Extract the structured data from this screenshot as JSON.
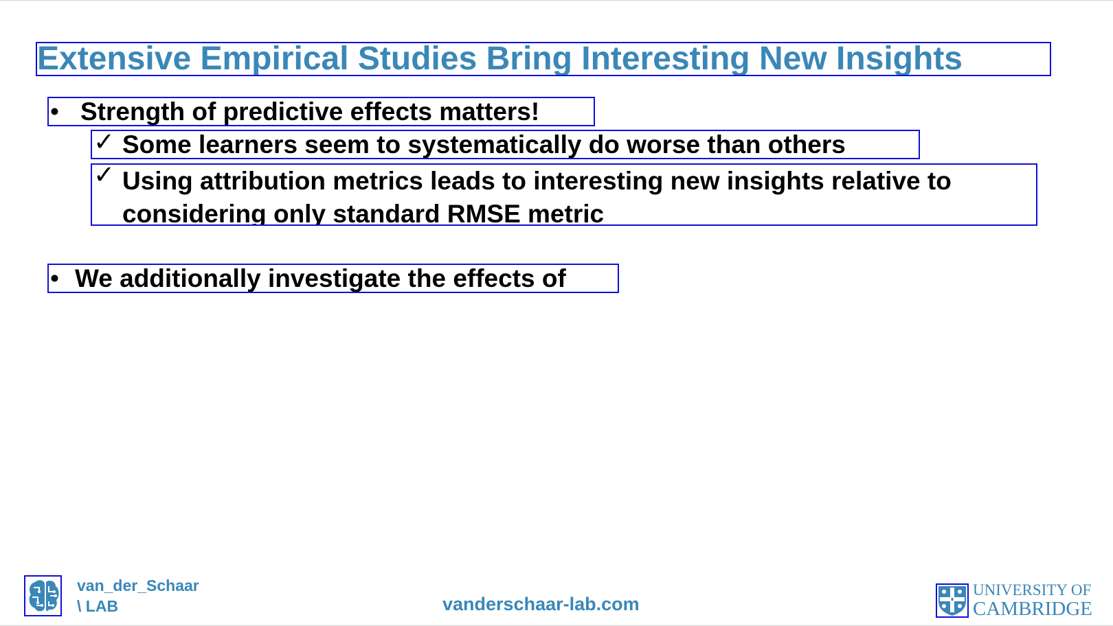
{
  "slide": {
    "title": "Extensive Empirical Studies Bring Interesting New Insights",
    "bullets": [
      {
        "marker": "•",
        "text": "Strength of predictive effects matters!",
        "sub_bullets": [
          {
            "marker": "✓",
            "text": "Some learners seem to systematically do worse than others"
          },
          {
            "marker": "✓",
            "text": "Using attribution metrics leads to interesting new insights relative to considering only standard RMSE metric"
          }
        ]
      },
      {
        "marker": "•",
        "text": "We additionally investigate the effects of"
      }
    ]
  },
  "footer": {
    "lab_name_line1": "van_der_Schaar",
    "lab_name_line2": "\\ LAB",
    "url": "vanderschaar-lab.com",
    "university_line1": "UNIVERSITY OF",
    "university_line2": "CAMBRIDGE",
    "lab_logo_icon": "brain-circuit-icon",
    "university_crest_icon": "cambridge-crest-icon",
    "brand_color": "#3a87b8"
  }
}
